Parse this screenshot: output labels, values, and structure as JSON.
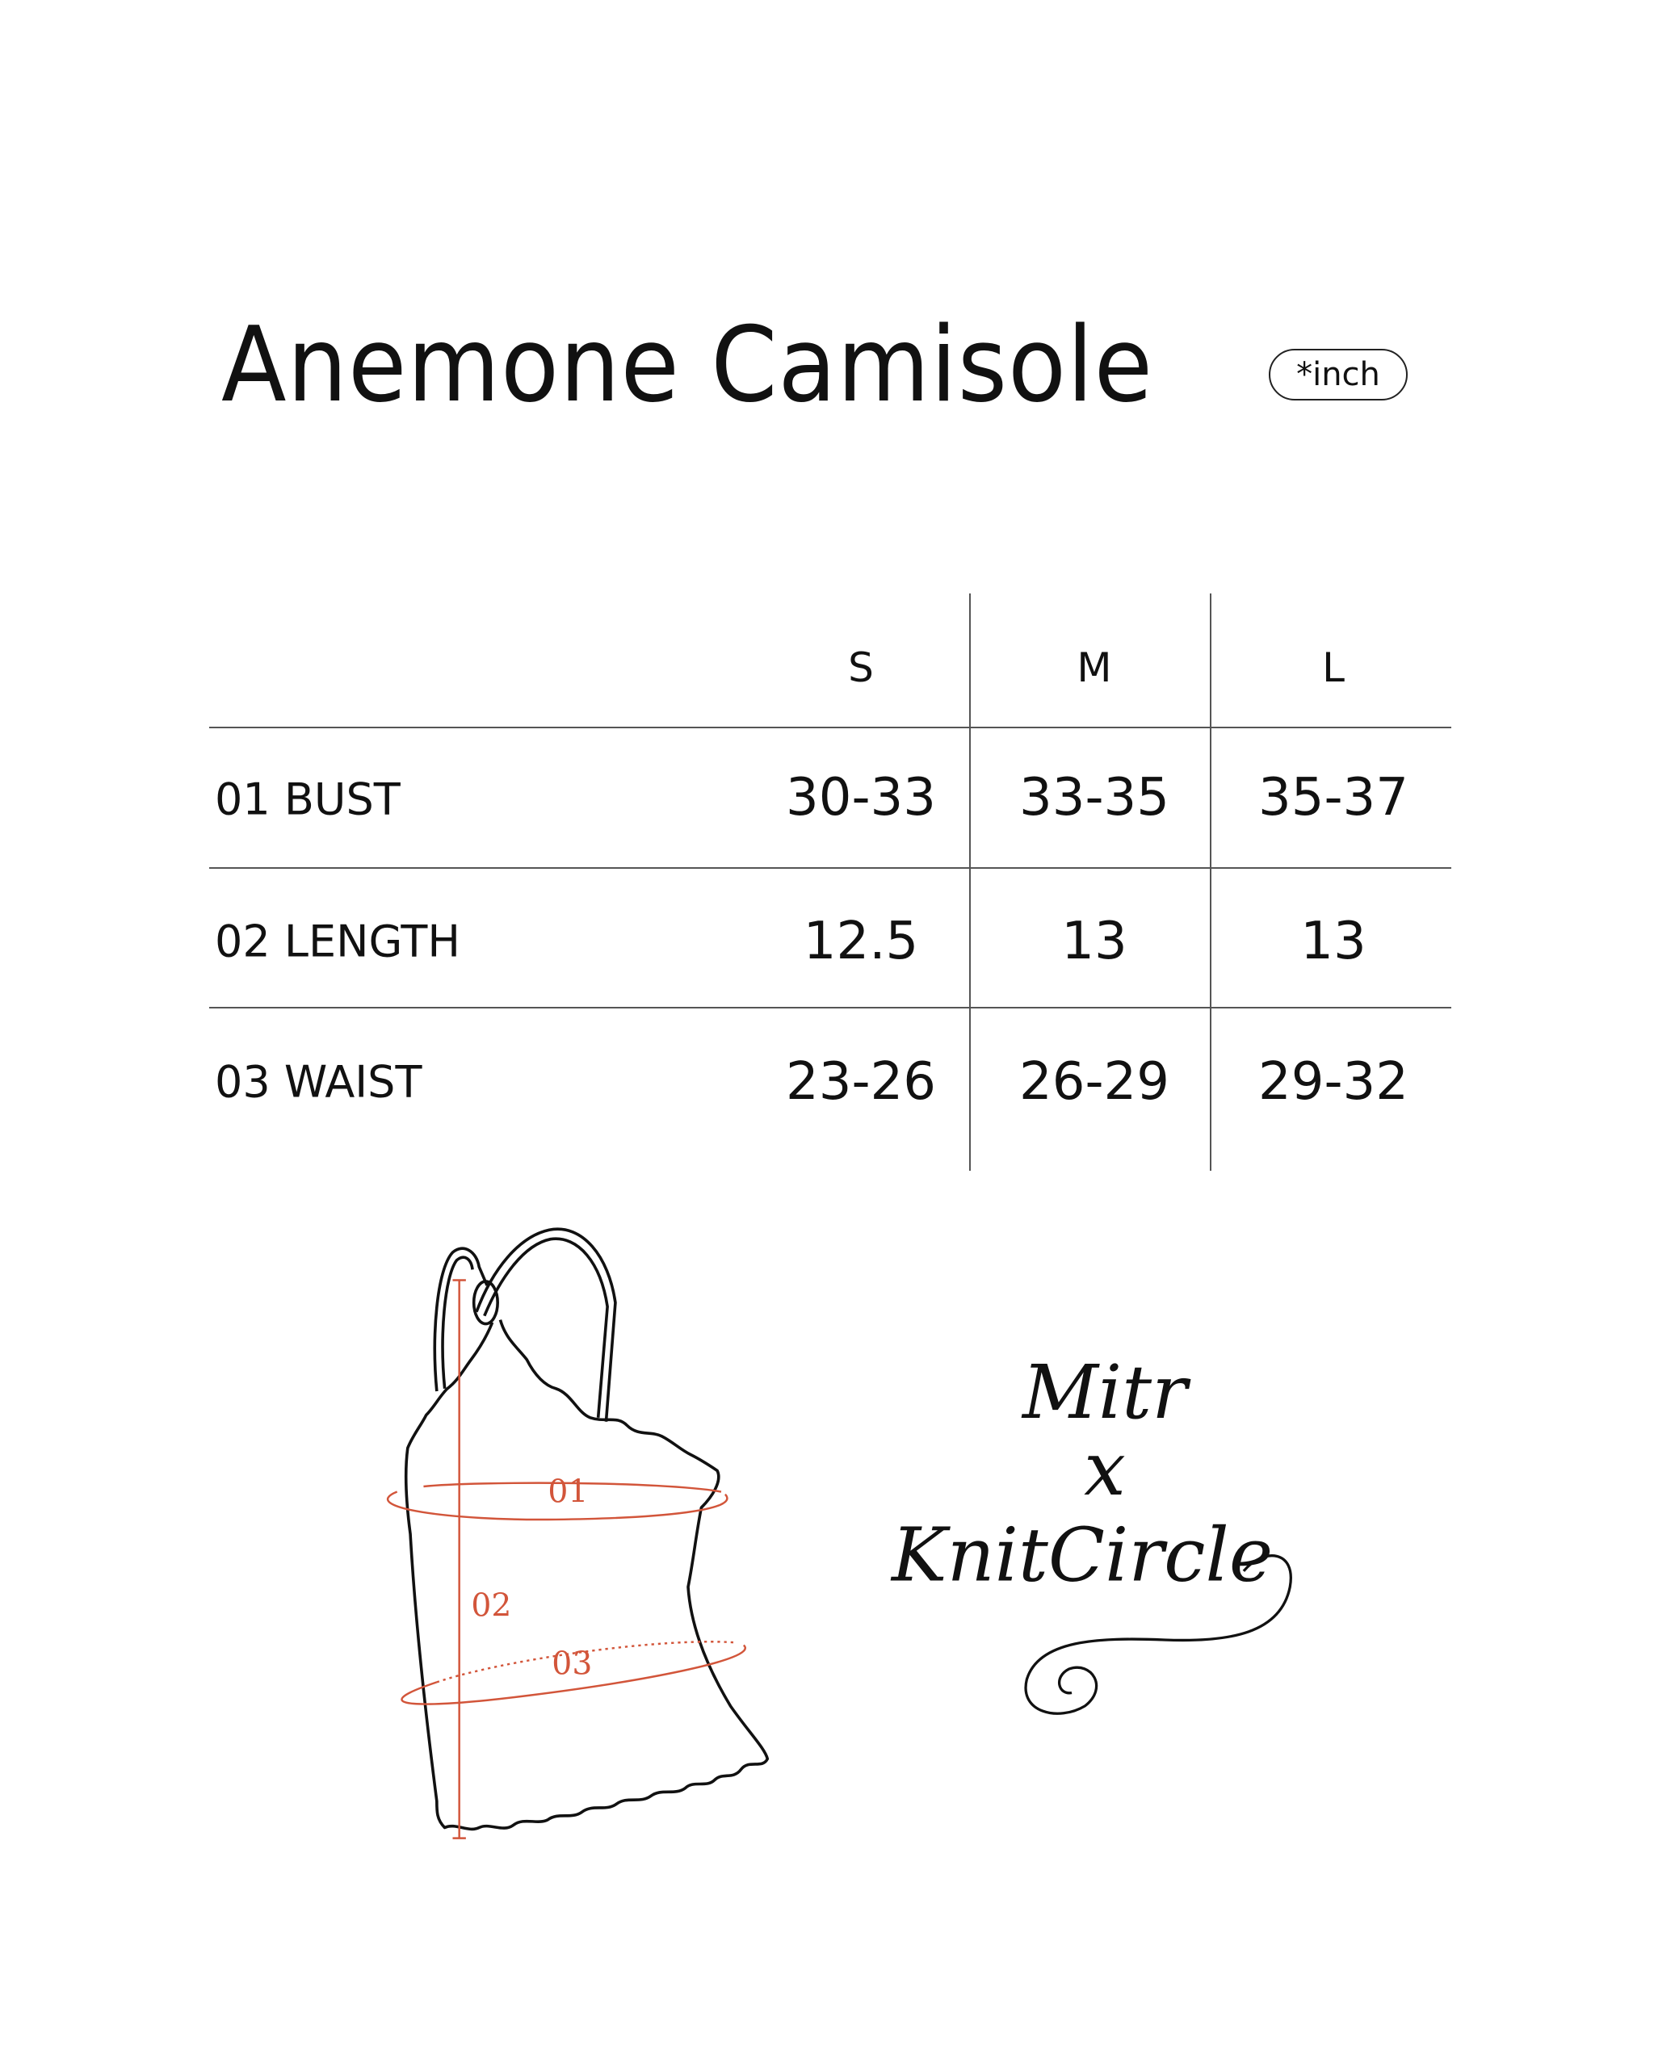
{
  "title": "Anemone Camisole",
  "unit_badge": "*inch",
  "table": {
    "columns": [
      "S",
      "M",
      "L"
    ],
    "rows": [
      {
        "label": "01 BUST",
        "values": [
          "30-33",
          "33-35",
          "35-37"
        ]
      },
      {
        "label": "02 LENGTH",
        "values": [
          "12.5",
          "13",
          "13"
        ]
      },
      {
        "label": "03 WAIST",
        "values": [
          "23-26",
          "26-29",
          "29-32"
        ]
      }
    ]
  },
  "diagram": {
    "labels": [
      "01",
      "02",
      "03"
    ],
    "accent_color": "#d2553a"
  },
  "logo": {
    "line1": "Mitr",
    "line2": "x",
    "line3": "KnitCircle"
  }
}
